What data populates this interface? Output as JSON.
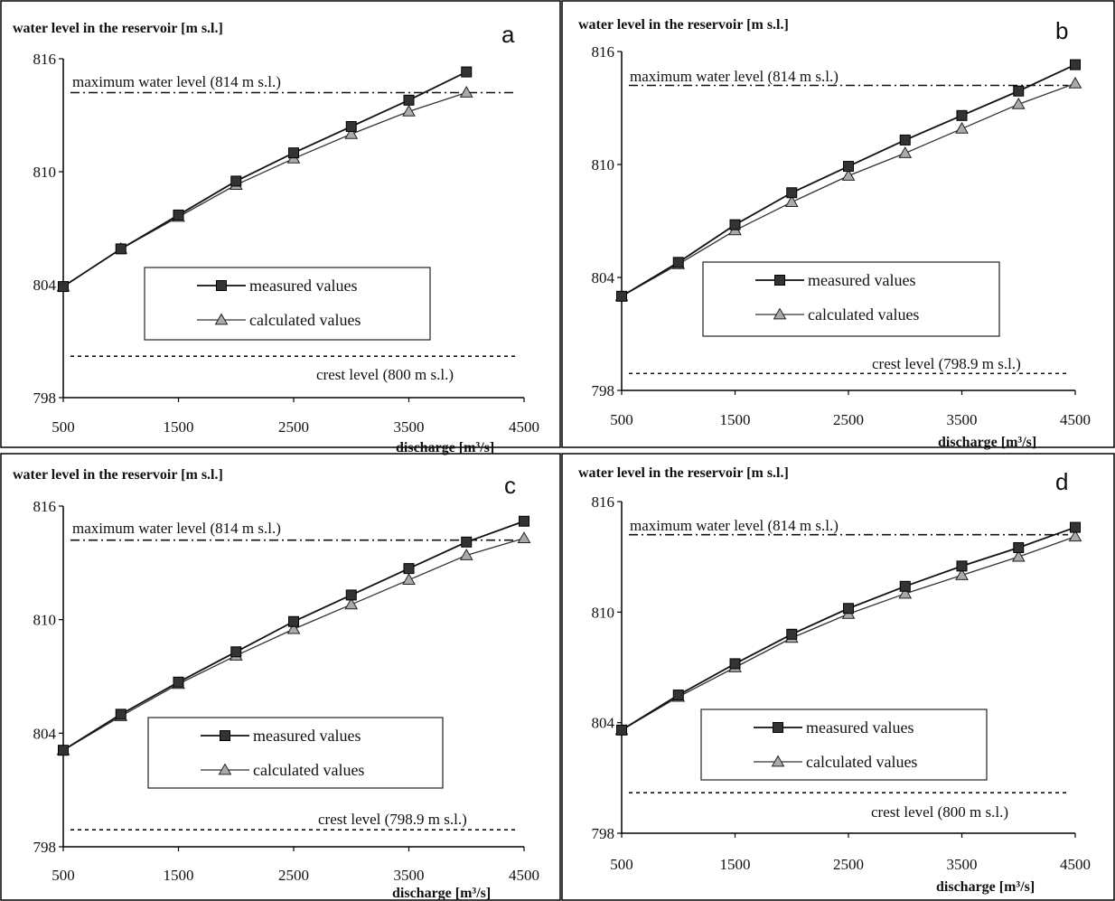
{
  "chart_data": [
    {
      "type": "line",
      "panel_letter": "a",
      "ylabel": "water level in the reservoir [m s.l.]",
      "xlabel": "discharge [m³/s]",
      "xlim": [
        500,
        4500
      ],
      "ylim": [
        798,
        816
      ],
      "xticks": [
        500,
        1500,
        2500,
        3500,
        4500
      ],
      "yticks": [
        798,
        804,
        810,
        816
      ],
      "x": [
        500,
        1000,
        1500,
        2000,
        2500,
        3000,
        3500,
        4000
      ],
      "series": [
        {
          "name": "measured values",
          "marker": "square",
          "values": [
            803.9,
            805.9,
            807.7,
            809.5,
            811.0,
            812.4,
            813.8,
            815.3
          ]
        },
        {
          "name": "calculated values",
          "marker": "triangle",
          "values": [
            803.9,
            805.9,
            807.6,
            809.3,
            810.7,
            812.0,
            813.2,
            814.2
          ]
        }
      ],
      "reference_lines": [
        {
          "label": "maximum water level (814 m s.l.)",
          "y": 814.2,
          "style": "dash-dot"
        },
        {
          "label": "crest level  (800 m s.l.)",
          "y": 800.2,
          "style": "dotted"
        }
      ],
      "legend_position": "center"
    },
    {
      "type": "line",
      "panel_letter": "b",
      "ylabel": "water level in the reservoir [m s.l.]",
      "xlabel": "discharge [m³/s]",
      "xlim": [
        500,
        4500
      ],
      "ylim": [
        798,
        816
      ],
      "xticks": [
        500,
        1500,
        2500,
        3500,
        4500
      ],
      "yticks": [
        798,
        804,
        810,
        816
      ],
      "x": [
        500,
        1000,
        1500,
        2000,
        2500,
        3000,
        3500,
        4000,
        4500
      ],
      "series": [
        {
          "name": "measured values",
          "marker": "square",
          "values": [
            803.0,
            804.8,
            806.8,
            808.5,
            809.9,
            811.3,
            812.6,
            813.9,
            815.3
          ]
        },
        {
          "name": "calculated values",
          "marker": "triangle",
          "values": [
            803.0,
            804.7,
            806.5,
            808.0,
            809.4,
            810.6,
            811.9,
            813.2,
            814.3
          ]
        }
      ],
      "reference_lines": [
        {
          "label": "maximum water level (814 m s.l.)",
          "y": 814.2,
          "style": "dash-dot"
        },
        {
          "label": "crest level  (798.9 m s.l.)",
          "y": 798.9,
          "style": "dotted"
        }
      ],
      "legend_position": "center-right"
    },
    {
      "type": "line",
      "panel_letter": "c",
      "ylabel": "water level in the reservoir [m s.l.]",
      "xlabel": "discharge [m³/s]",
      "xlim": [
        500,
        4500
      ],
      "ylim": [
        798,
        816
      ],
      "xticks": [
        500,
        1500,
        2500,
        3500,
        4500
      ],
      "yticks": [
        798,
        804,
        810,
        816
      ],
      "x": [
        500,
        1000,
        1500,
        2000,
        2500,
        3000,
        3500,
        4000,
        4500
      ],
      "series": [
        {
          "name": "measured values",
          "marker": "square",
          "values": [
            803.1,
            805.0,
            806.7,
            808.3,
            809.9,
            811.3,
            812.7,
            814.1,
            815.2
          ]
        },
        {
          "name": "calculated values",
          "marker": "triangle",
          "values": [
            803.1,
            804.9,
            806.6,
            808.1,
            809.5,
            810.8,
            812.1,
            813.4,
            814.3
          ]
        }
      ],
      "reference_lines": [
        {
          "label": "maximum water level (814 m s.l.)",
          "y": 814.2,
          "style": "dash-dot"
        },
        {
          "label": "crest level  (798.9 m s.l.)",
          "y": 798.9,
          "style": "dotted"
        }
      ],
      "legend_position": "center"
    },
    {
      "type": "line",
      "panel_letter": "d",
      "ylabel": "water level in the reservoir [m s.l.]",
      "xlabel": "discharge [m³/s]",
      "xlim": [
        500,
        4500
      ],
      "ylim": [
        798,
        816
      ],
      "xticks": [
        500,
        1500,
        2500,
        3500,
        4500
      ],
      "yticks": [
        798,
        804,
        810,
        816
      ],
      "x": [
        500,
        1000,
        1500,
        2000,
        2500,
        3000,
        3500,
        4000,
        4500
      ],
      "series": [
        {
          "name": "measured values",
          "marker": "square",
          "values": [
            803.6,
            805.5,
            807.2,
            808.8,
            810.2,
            811.4,
            812.5,
            813.5,
            814.6
          ]
        },
        {
          "name": "calculated values",
          "marker": "triangle",
          "values": [
            803.6,
            805.4,
            807.0,
            808.6,
            809.9,
            811.0,
            812.0,
            813.0,
            814.1
          ]
        }
      ],
      "reference_lines": [
        {
          "label": "maximum water level (814 m s.l.)",
          "y": 814.2,
          "style": "dash-dot"
        },
        {
          "label": "crest level  (800 m s.l.)",
          "y": 800.2,
          "style": "dotted"
        }
      ],
      "legend_position": "center-right"
    }
  ]
}
